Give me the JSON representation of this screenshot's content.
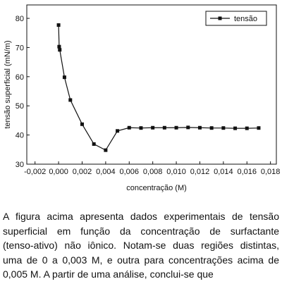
{
  "chart_data": {
    "type": "line",
    "x_label": "concentração (M)",
    "y_label": "tensão superficial (mN/m)",
    "x": [
      0,
      5e-05,
      0.0001,
      0.0005,
      0.001,
      0.002,
      0.003,
      0.004,
      0.005,
      0.006,
      0.007,
      0.008,
      0.009,
      0.01,
      0.011,
      0.012,
      0.013,
      0.014,
      0.015,
      0.016,
      0.017
    ],
    "series": [
      {
        "name": "tensão",
        "color": "#111111",
        "values": [
          77.7,
          70.3,
          69.2,
          59.8,
          52.0,
          43.7,
          36.9,
          34.8,
          41.4,
          42.5,
          42.4,
          42.5,
          42.5,
          42.5,
          42.6,
          42.5,
          42.4,
          42.4,
          42.3,
          42.3,
          42.4
        ]
      }
    ],
    "xlim": [
      -0.0027,
      0.0185
    ],
    "ylim": [
      30,
      84.6
    ],
    "xticks": [
      {
        "value": -0.002,
        "label": "-0,002"
      },
      {
        "value": 0,
        "label": "0,000"
      },
      {
        "value": 0.002,
        "label": "0,002"
      },
      {
        "value": 0.004,
        "label": "0,004"
      },
      {
        "value": 0.006,
        "label": "0,006"
      },
      {
        "value": 0.008,
        "label": "0,008"
      },
      {
        "value": 0.01,
        "label": "0,010"
      },
      {
        "value": 0.012,
        "label": "0,012"
      },
      {
        "value": 0.014,
        "label": "0,014"
      },
      {
        "value": 0.016,
        "label": "0,016"
      },
      {
        "value": 0.018,
        "label": "0,018"
      }
    ],
    "yticks": [
      30,
      40,
      50,
      60,
      70,
      80
    ],
    "legend": "upper right"
  },
  "paragraph": {
    "lines": [
      "A figura acima apresenta dados experimentais de tensão",
      "superficial em função da concentração de surfactante",
      "(tenso-ativo) não iônico. Notam-se duas regiões distintas,",
      "uma de 0 a 0,003 M, e outra para concentrações acima de",
      "0,005 M. A partir de uma análise, conclui-se que"
    ]
  }
}
